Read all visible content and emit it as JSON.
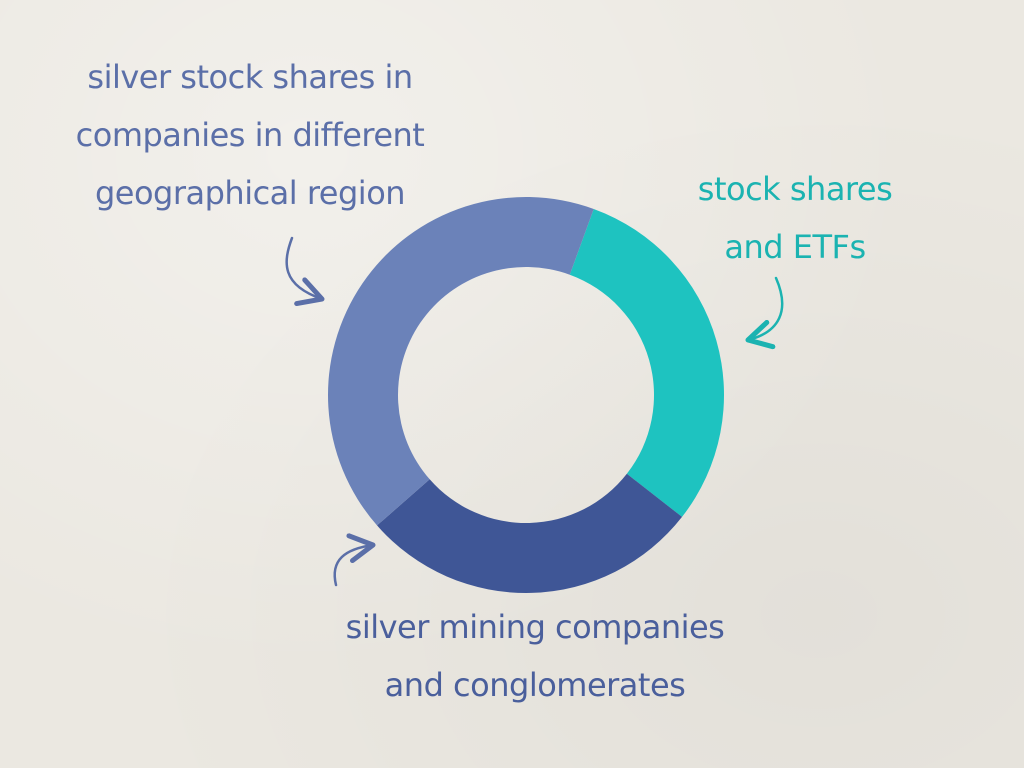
{
  "chart_data": {
    "type": "pie",
    "variant": "donut",
    "title": "",
    "slices": [
      {
        "label_lines": [
          "stock shares",
          "and ETFs"
        ],
        "value": 30,
        "color": "#1ec3c0"
      },
      {
        "label_lines": [
          "silver mining companies",
          "and conglomerates"
        ],
        "value": 28,
        "color": "#3f5696"
      },
      {
        "label_lines": [
          "silver stock shares in",
          "companies in different",
          "geographical region"
        ],
        "value": 42,
        "color": "#6b82b9"
      }
    ],
    "start_angle_deg": 20,
    "legend": "none"
  }
}
